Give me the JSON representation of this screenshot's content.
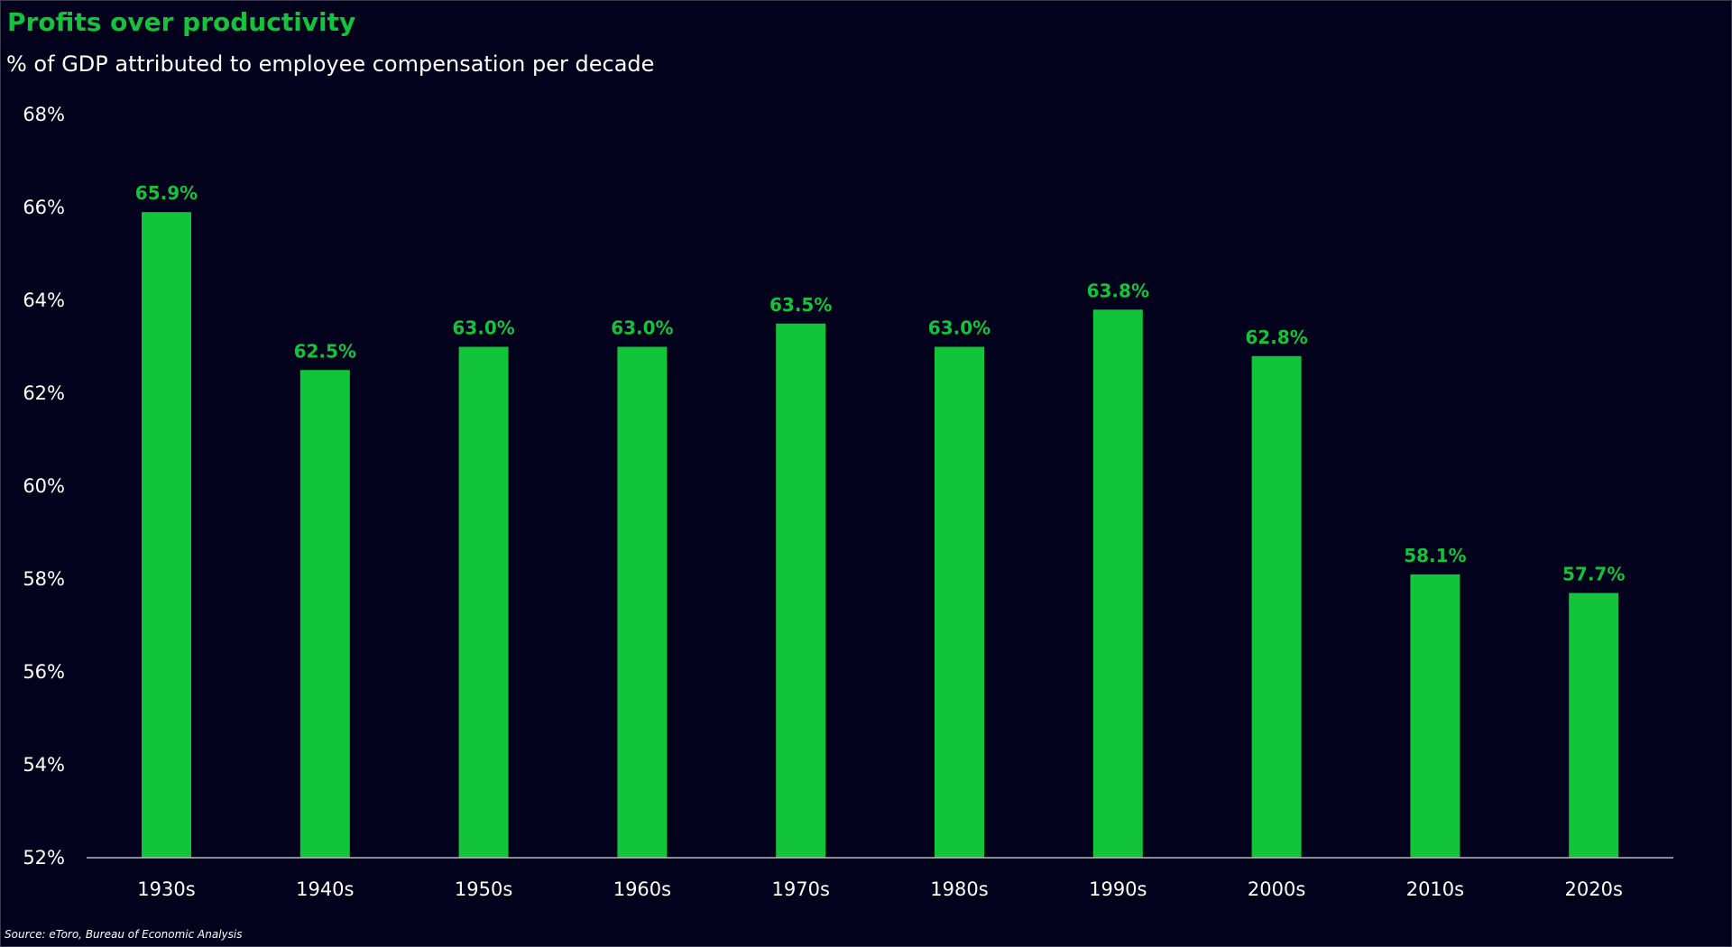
{
  "title": "Profits over productivity",
  "subtitle": "% of GDP attributed to employee compensation per decade",
  "source": "Source: eToro, Bureau of Economic Analysis",
  "colors": {
    "background": "#02021c",
    "bar": "#12c43a",
    "title": "#12c43a",
    "text": "#ffffff",
    "axis": "#b8b8c4"
  },
  "chart_data": {
    "type": "bar",
    "categories": [
      "1930s",
      "1940s",
      "1950s",
      "1960s",
      "1970s",
      "1980s",
      "1990s",
      "2000s",
      "2010s",
      "2020s"
    ],
    "values": [
      65.9,
      62.5,
      63.0,
      63.0,
      63.5,
      63.0,
      63.8,
      62.8,
      58.1,
      57.7
    ],
    "data_labels": [
      "65.9%",
      "62.5%",
      "63.0%",
      "63.0%",
      "63.5%",
      "63.0%",
      "63.8%",
      "62.8%",
      "58.1%",
      "57.7%"
    ],
    "y_ticks": [
      52,
      54,
      56,
      58,
      60,
      62,
      64,
      66,
      68
    ],
    "y_tick_labels": [
      "52%",
      "54%",
      "56%",
      "58%",
      "60%",
      "62%",
      "64%",
      "66%",
      "68%"
    ],
    "ylim": [
      52,
      68
    ],
    "grid": false,
    "legend": "none"
  }
}
